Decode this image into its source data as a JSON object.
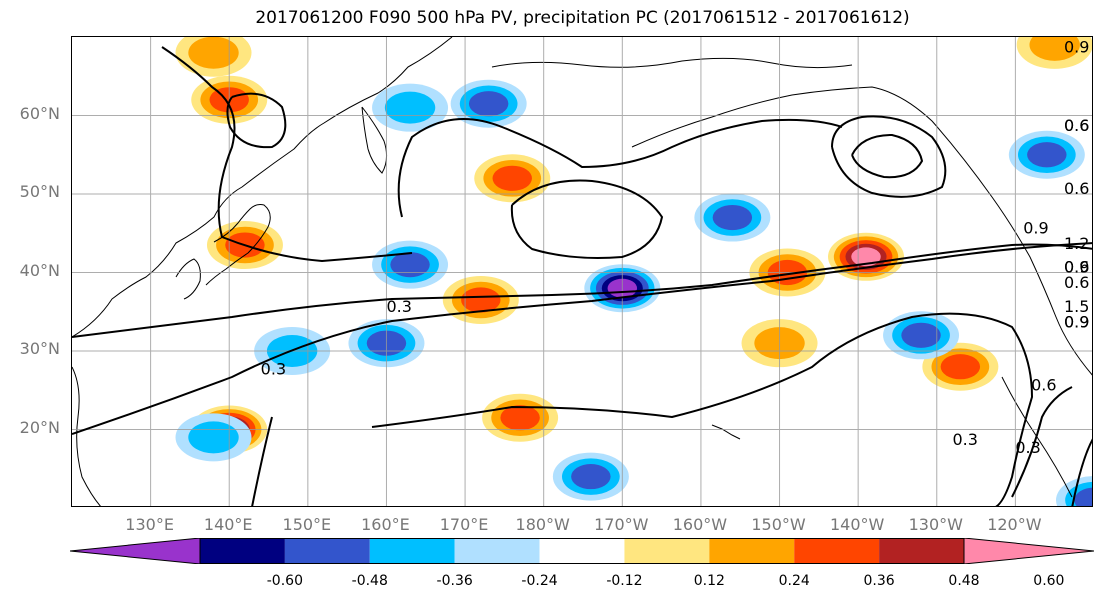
{
  "title": "2017061200 F090 500 hPa PV, precipitation PC (2017061512 - 2017061612)",
  "axes": {
    "lat_labels": [
      "60°N",
      "50°N",
      "40°N",
      "30°N",
      "20°N"
    ],
    "lon_labels": [
      "130°E",
      "140°E",
      "150°E",
      "160°E",
      "170°E",
      "180°W",
      "170°W",
      "160°W",
      "150°W",
      "140°W",
      "130°W",
      "120°W"
    ],
    "lat_values": [
      60,
      50,
      40,
      30,
      20
    ],
    "lon_values": [
      130,
      140,
      150,
      160,
      170,
      180,
      190,
      200,
      210,
      220,
      230,
      240
    ],
    "lon_range": [
      120,
      250
    ],
    "lat_range": [
      10,
      70
    ],
    "grid": true
  },
  "colorbar": {
    "levels": [
      "-0.60",
      "-0.48",
      "-0.36",
      "-0.24",
      "-0.12",
      "0.12",
      "0.24",
      "0.36",
      "0.48",
      "0.60"
    ],
    "colors": [
      "#9933cc",
      "#000080",
      "#3355cc",
      "#00bfff",
      "#b0e0ff",
      "#ffffff",
      "#ffe680",
      "#ffa500",
      "#ff4500",
      "#b22222",
      "#ff88aa"
    ],
    "extend": "both"
  },
  "contour_labels": [
    "0.9",
    "0.9",
    "0.6",
    "0.6",
    "0.6",
    "0.3",
    "0.9",
    "0.9",
    "1.2",
    "0.6",
    "0.9",
    "1.5",
    "0.9",
    "0.6",
    "0.6",
    "0.3",
    "0.6",
    "0.3",
    "0.3",
    "0.3",
    "0.9"
  ],
  "pv_contour_levels": [
    0.3,
    0.6,
    0.9,
    1.2,
    1.5
  ],
  "precip_features": [
    {
      "lon": 140,
      "lat": 20,
      "value": 0.55
    },
    {
      "lon": 176,
      "lat": 52,
      "value": 0.4
    },
    {
      "lon": 172,
      "lat": 36.5,
      "value": 0.4
    },
    {
      "lon": 140,
      "lat": 62,
      "value": 0.4
    },
    {
      "lon": 142,
      "lat": 43.5,
      "value": 0.4
    },
    {
      "lon": 221,
      "lat": 42,
      "value": 0.7
    },
    {
      "lon": 211,
      "lat": 40,
      "value": 0.4
    },
    {
      "lon": 177,
      "lat": 21.5,
      "value": 0.4
    },
    {
      "lon": 233,
      "lat": 28,
      "value": 0.4
    },
    {
      "lon": 210,
      "lat": 31,
      "value": 0.3
    },
    {
      "lon": 190,
      "lat": 38,
      "value": -0.6
    },
    {
      "lon": 204,
      "lat": 47,
      "value": -0.4
    },
    {
      "lon": 228,
      "lat": 32,
      "value": -0.4
    },
    {
      "lon": 163,
      "lat": 41,
      "value": -0.35
    },
    {
      "lon": 244,
      "lat": 55,
      "value": -0.4
    },
    {
      "lon": 186,
      "lat": 14,
      "value": -0.35
    },
    {
      "lon": 160,
      "lat": 31,
      "value": -0.35
    },
    {
      "lon": 173,
      "lat": 61.5,
      "value": -0.35
    },
    {
      "lon": 163,
      "lat": 61,
      "value": -0.3
    },
    {
      "lon": 148,
      "lat": 30,
      "value": -0.3
    },
    {
      "lon": 138,
      "lat": 19,
      "value": -0.3
    },
    {
      "lon": 250,
      "lat": 11,
      "value": -0.4
    },
    {
      "lon": 138,
      "lat": 68,
      "value": 0.3
    },
    {
      "lon": 245,
      "lat": 69,
      "value": 0.3
    }
  ]
}
